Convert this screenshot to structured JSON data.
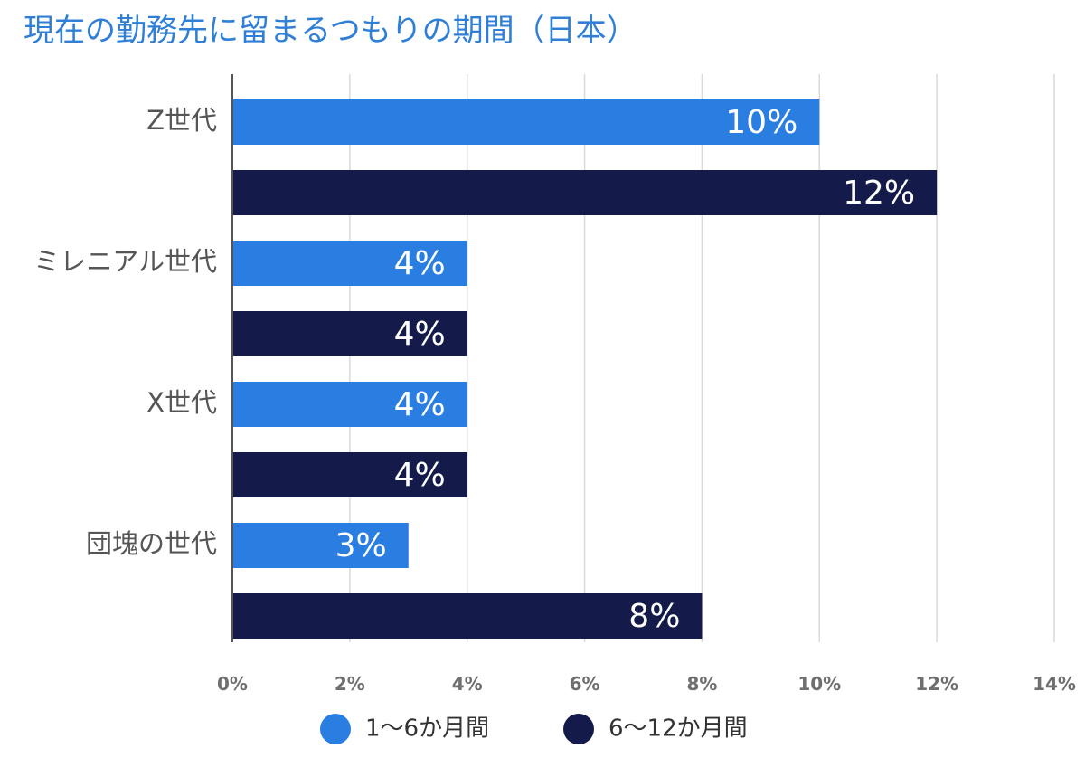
{
  "chart_data": {
    "type": "bar",
    "orientation": "horizontal",
    "title": "現在の勤務先に留まるつもりの期間（日本）",
    "categories": [
      "Z世代",
      "ミレニアル世代",
      "X世代",
      "団塊の世代"
    ],
    "series": [
      {
        "name": "1〜6か月間",
        "color": "#2a7de1",
        "values": [
          10,
          4,
          4,
          3
        ],
        "labels": [
          "10%",
          "4%",
          "4%",
          "3%"
        ]
      },
      {
        "name": "6〜12か月間",
        "color": "#141a4a",
        "values": [
          12,
          4,
          4,
          8
        ],
        "labels": [
          "12%",
          "4%",
          "4%",
          "8%"
        ]
      }
    ],
    "xlim": [
      0,
      14
    ],
    "xticks": [
      0,
      2,
      4,
      6,
      8,
      10,
      12,
      14
    ],
    "xtick_labels": [
      "0%",
      "2%",
      "4%",
      "6%",
      "8%",
      "10%",
      "12%",
      "14%"
    ],
    "grid": true,
    "legend_position": "bottom"
  }
}
